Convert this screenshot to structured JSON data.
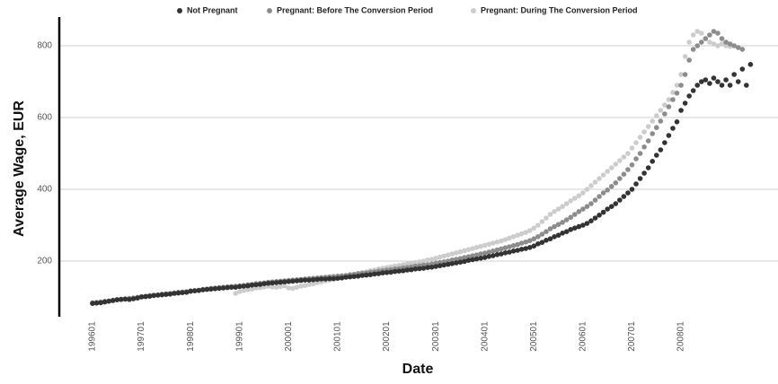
{
  "chart_data": {
    "type": "scatter",
    "x_label": "Date",
    "y_label": "Average Wage, EUR",
    "categories": [
      "199601",
      null,
      null,
      null,
      null,
      null,
      null,
      null,
      null,
      null,
      null,
      null,
      "199701",
      null,
      null,
      null,
      null,
      null,
      null,
      null,
      null,
      null,
      null,
      null,
      "199801",
      null,
      null,
      null,
      null,
      null,
      null,
      null,
      null,
      null,
      null,
      null,
      "199901",
      null,
      null,
      null,
      null,
      null,
      null,
      null,
      null,
      null,
      null,
      null,
      "200001",
      null,
      null,
      null,
      null,
      null,
      null,
      null,
      null,
      null,
      null,
      null,
      "200101",
      null,
      null,
      null,
      null,
      null,
      null,
      null,
      null,
      null,
      null,
      null,
      "200201",
      null,
      null,
      null,
      null,
      null,
      null,
      null,
      null,
      null,
      null,
      null,
      "200301",
      null,
      null,
      null,
      null,
      null,
      null,
      null,
      null,
      null,
      null,
      null,
      "200401",
      null,
      null,
      null,
      null,
      null,
      null,
      null,
      null,
      null,
      null,
      null,
      "200501",
      null,
      null,
      null,
      null,
      null,
      null,
      null,
      null,
      null,
      null,
      null,
      "200601",
      null,
      null,
      null,
      null,
      null,
      null,
      null,
      null,
      null,
      null,
      null,
      "200701",
      null,
      null,
      null,
      null,
      null,
      null,
      null,
      null,
      null,
      null,
      null,
      "200801",
      null,
      null,
      null,
      null,
      null,
      null,
      null,
      null,
      null,
      null,
      null,
      null,
      null,
      null,
      null,
      null,
      null
    ],
    "series": [
      {
        "name": "Not Pregnant",
        "color": "#333333",
        "values": [
          82,
          83,
          84,
          86,
          88,
          90,
          92,
          93,
          94,
          93,
          95,
          97,
          100,
          101,
          102,
          104,
          105,
          106,
          107,
          108,
          110,
          111,
          112,
          113,
          116,
          117,
          118,
          120,
          121,
          122,
          123,
          124,
          125,
          126,
          127,
          127,
          129,
          130,
          131,
          133,
          134,
          135,
          137,
          138,
          139,
          140,
          141,
          142,
          143,
          144,
          145,
          146,
          147,
          147,
          148,
          149,
          150,
          150,
          151,
          151,
          152,
          153,
          155,
          156,
          157,
          158,
          160,
          161,
          162,
          164,
          165,
          167,
          168,
          169,
          171,
          172,
          173,
          175,
          176,
          178,
          179,
          180,
          182,
          183,
          185,
          187,
          189,
          191,
          193,
          195,
          197,
          199,
          202,
          204,
          206,
          208,
          210,
          213,
          215,
          218,
          220,
          223,
          225,
          228,
          230,
          233,
          235,
          238,
          242,
          248,
          252,
          258,
          262,
          268,
          272,
          278,
          282,
          288,
          292,
          296,
          300,
          305,
          312,
          320,
          328,
          336,
          345,
          352,
          360,
          370,
          380,
          390,
          400,
          415,
          430,
          445,
          460,
          478,
          495,
          510,
          530,
          550,
          570,
          588,
          620,
          640,
          660,
          675,
          690,
          700,
          705,
          695,
          710,
          700,
          690,
          705,
          690,
          720,
          700,
          735,
          690,
          748
        ]
      },
      {
        "name": "Pregnant: Before The Conversion Period",
        "color": "#8c8c8c",
        "values": [
          84,
          85,
          86,
          88,
          89,
          91,
          93,
          94,
          95,
          96,
          97,
          99,
          101,
          102,
          104,
          105,
          106,
          108,
          109,
          110,
          111,
          113,
          114,
          115,
          117,
          118,
          119,
          121,
          122,
          124,
          125,
          126,
          127,
          128,
          129,
          130,
          131,
          132,
          134,
          135,
          137,
          138,
          139,
          141,
          142,
          143,
          144,
          145,
          146,
          147,
          148,
          149,
          150,
          151,
          152,
          153,
          154,
          155,
          156,
          157,
          158,
          159,
          160,
          162,
          163,
          165,
          166,
          167,
          169,
          170,
          172,
          173,
          175,
          176,
          178,
          179,
          181,
          182,
          184,
          186,
          187,
          189,
          190,
          192,
          194,
          196,
          198,
          200,
          203,
          205,
          207,
          210,
          212,
          215,
          217,
          220,
          222,
          225,
          228,
          231,
          234,
          237,
          240,
          243,
          246,
          250,
          253,
          257,
          262,
          268,
          275,
          282,
          290,
          296,
          302,
          308,
          315,
          322,
          330,
          338,
          345,
          352,
          360,
          370,
          380,
          390,
          398,
          408,
          418,
          430,
          442,
          455,
          468,
          485,
          500,
          518,
          535,
          555,
          572,
          590,
          610,
          630,
          650,
          668,
          690,
          720,
          760,
          790,
          800,
          810,
          820,
          830,
          840,
          835,
          820,
          810,
          805,
          800,
          795,
          790,
          null,
          null
        ]
      },
      {
        "name": "Pregnant: During The Conversion Period",
        "color": "#cccccc",
        "values": [
          null,
          null,
          null,
          null,
          null,
          null,
          null,
          null,
          null,
          null,
          null,
          null,
          null,
          null,
          null,
          null,
          null,
          null,
          null,
          null,
          null,
          null,
          null,
          null,
          null,
          null,
          null,
          null,
          null,
          null,
          null,
          null,
          null,
          null,
          null,
          110,
          115,
          118,
          120,
          122,
          125,
          126,
          128,
          130,
          128,
          127,
          129,
          131,
          125,
          124,
          127,
          130,
          132,
          135,
          137,
          140,
          142,
          145,
          147,
          150,
          152,
          155,
          158,
          160,
          163,
          166,
          168,
          170,
          173,
          175,
          178,
          180,
          182,
          184,
          186,
          188,
          190,
          192,
          194,
          196,
          198,
          200,
          203,
          205,
          208,
          211,
          214,
          217,
          220,
          223,
          226,
          229,
          232,
          235,
          238,
          241,
          244,
          247,
          250,
          253,
          256,
          260,
          264,
          268,
          272,
          276,
          280,
          285,
          292,
          300,
          310,
          320,
          330,
          338,
          345,
          352,
          360,
          368,
          375,
          382,
          390,
          400,
          410,
          420,
          430,
          440,
          450,
          460,
          470,
          480,
          490,
          500,
          515,
          530,
          545,
          560,
          575,
          590,
          605,
          620,
          635,
          650,
          670,
          690,
          720,
          770,
          810,
          830,
          840,
          835,
          820,
          810,
          805,
          800,
          805,
          800,
          798,
          null,
          null,
          null,
          null,
          null
        ]
      }
    ],
    "ylim": [
      50,
      880
    ],
    "yticks": [
      200,
      400,
      600,
      800
    ],
    "grid": true,
    "legend": "top"
  }
}
